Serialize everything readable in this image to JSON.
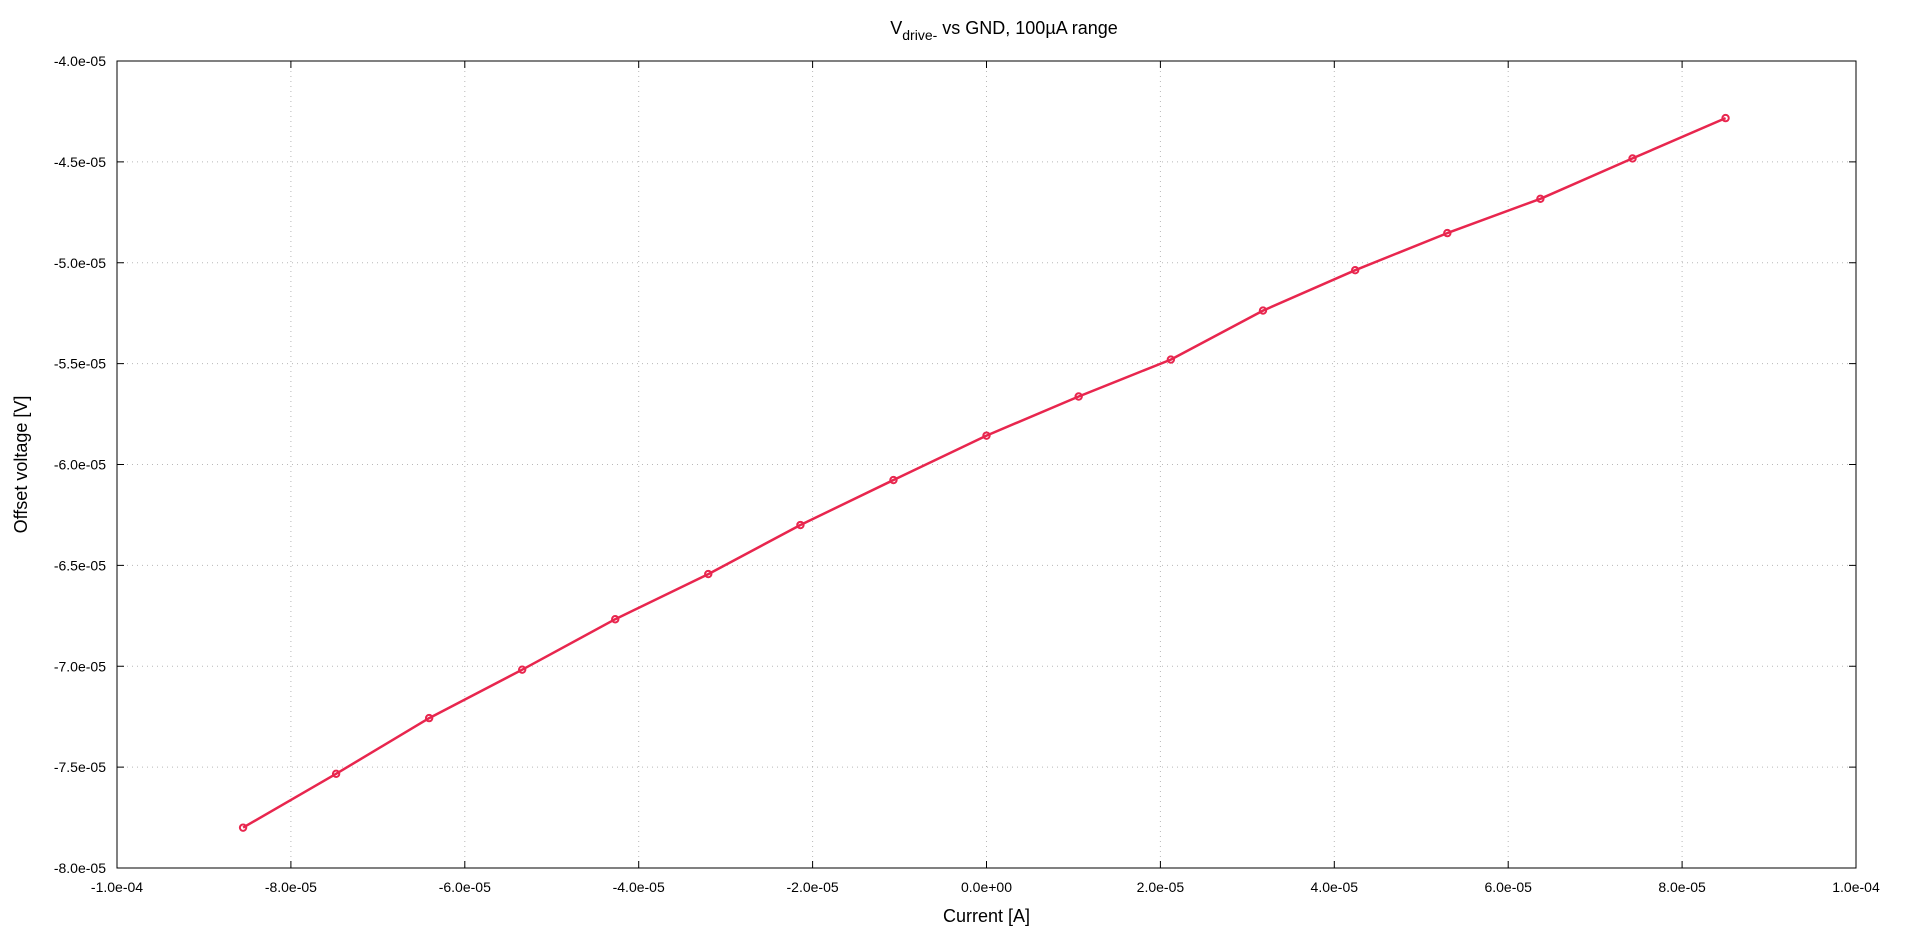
{
  "chart_data": {
    "type": "line",
    "title": {
      "main": "V",
      "subscript": "drive-",
      "rest": " vs GND, 100µA range"
    },
    "xlabel": "Current [A]",
    "ylabel": "Offset voltage [V]",
    "xlim": [
      -0.0001,
      0.0001
    ],
    "ylim": [
      -8e-05,
      -4e-05
    ],
    "x_ticks": [
      -0.0001,
      -8e-05,
      -6e-05,
      -4e-05,
      -2e-05,
      0,
      2e-05,
      4e-05,
      6e-05,
      8e-05,
      0.0001
    ],
    "x_tick_labels": [
      "-1.0e-04",
      "-8.0e-05",
      "-6.0e-05",
      "-4.0e-05",
      "-2.0e-05",
      "0.0e+00",
      "2.0e-05",
      "4.0e-05",
      "6.0e-05",
      "8.0e-05",
      "1.0e-04"
    ],
    "y_ticks": [
      -4e-05,
      -4.5e-05,
      -5e-05,
      -5.5e-05,
      -6e-05,
      -6.5e-05,
      -7e-05,
      -7.5e-05,
      -8e-05
    ],
    "y_tick_labels": [
      "-4.0e-05",
      "-4.5e-05",
      "-5.0e-05",
      "-5.5e-05",
      "-6.0e-05",
      "-6.5e-05",
      "-7.0e-05",
      "-7.5e-05",
      "-8.0e-05"
    ],
    "grid": true,
    "series": [
      {
        "color": "#e8264e",
        "x": [
          -8.55e-05,
          -7.48e-05,
          -6.41e-05,
          -5.34e-05,
          -4.27e-05,
          -3.2e-05,
          -2.14e-05,
          -1.07e-05,
          0,
          1.06e-05,
          2.12e-05,
          3.18e-05,
          4.24e-05,
          5.3e-05,
          6.37e-05,
          7.43e-05,
          8.5e-05
        ],
        "y": [
          -7.8e-05,
          -7.533e-05,
          -7.257e-05,
          -7.017e-05,
          -6.767e-05,
          -6.543e-05,
          -6.3e-05,
          -6.077e-05,
          -5.857e-05,
          -5.663e-05,
          -5.48e-05,
          -5.237e-05,
          -5.037e-05,
          -4.853e-05,
          -4.683e-05,
          -4.483e-05,
          -4.283e-05
        ]
      }
    ]
  }
}
